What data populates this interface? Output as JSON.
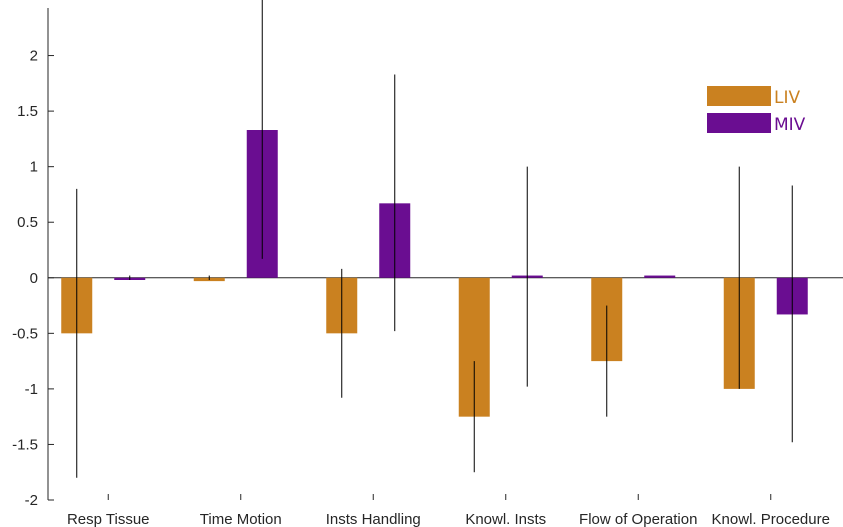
{
  "chart_data": {
    "type": "bar",
    "categories": [
      "Resp Tissue",
      "Time Motion",
      "Insts Handling",
      "Knowl. Insts",
      "Flow of Operation",
      "Knowl. Procedure"
    ],
    "series": [
      {
        "name": "LIV",
        "color": "#CA8120",
        "values": [
          -0.5,
          -0.03,
          -0.5,
          -1.25,
          -0.75,
          -1.0
        ],
        "error_low": [
          -1.8,
          -0.02,
          -1.08,
          -1.75,
          -1.25,
          -1.0
        ],
        "error_high": [
          0.8,
          0.02,
          0.08,
          -0.75,
          -0.25,
          1.0
        ]
      },
      {
        "name": "MIV",
        "color": "#6A0D91",
        "values": [
          -0.02,
          1.33,
          0.67,
          0.02,
          0.02,
          -0.33
        ],
        "error_low": [
          -0.02,
          0.17,
          -0.48,
          -0.98,
          0.02,
          -1.48
        ],
        "error_high": [
          0.02,
          2.5,
          1.83,
          1.0,
          0.02,
          0.83
        ]
      }
    ],
    "y_ticks": [
      "-2",
      "-1.5",
      "-1",
      "-0.5",
      "0",
      "0.5",
      "1",
      "1.5",
      "2"
    ],
    "ylim": [
      -2,
      2.5
    ],
    "title": "",
    "xlabel": "",
    "ylabel": "",
    "legend_position": "top-right",
    "grid": false,
    "zero_line": true
  }
}
